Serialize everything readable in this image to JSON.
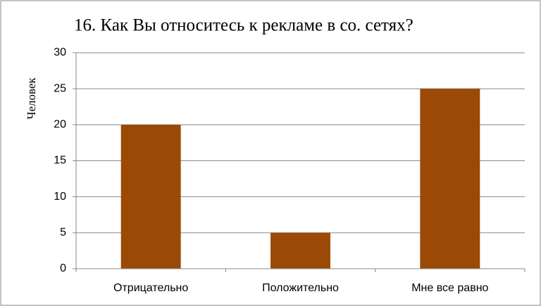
{
  "chart_data": {
    "type": "bar",
    "title": "16. Как Вы относитесь к рекламе в со. сетях?",
    "y_label": "Человек",
    "categories": [
      "Отрицательно",
      "Положительно",
      "Мне все равно"
    ],
    "values": [
      20,
      5,
      25
    ],
    "color": "#9a4a06",
    "ylim": [
      0,
      30
    ],
    "yticks": [
      0,
      5,
      10,
      15,
      20,
      25,
      30
    ],
    "grid": true
  }
}
